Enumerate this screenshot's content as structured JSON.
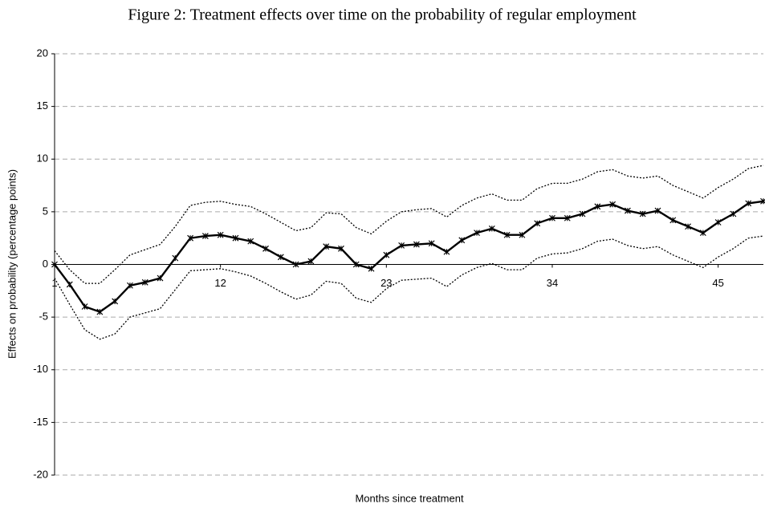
{
  "chart_data": {
    "type": "line",
    "title": "Figure 2: Treatment effects over time on the probability of regular employment",
    "xlabel": "Months since treatment",
    "ylabel": "Effects on probability (percentage points)",
    "x": [
      1,
      2,
      3,
      4,
      5,
      6,
      7,
      8,
      9,
      10,
      11,
      12,
      13,
      14,
      15,
      16,
      17,
      18,
      19,
      20,
      21,
      22,
      23,
      24,
      25,
      26,
      27,
      28,
      29,
      30,
      31,
      32,
      33,
      34,
      35,
      36,
      37,
      38,
      39,
      40,
      41,
      42,
      43,
      44,
      45,
      46,
      47,
      48
    ],
    "xlim": [
      1,
      48
    ],
    "xticks": [
      1,
      12,
      23,
      34,
      45
    ],
    "ylim": [
      -20,
      20
    ],
    "yticks": [
      -20,
      -15,
      -10,
      -5,
      0,
      5,
      10,
      15,
      20
    ],
    "grid": true,
    "series": [
      {
        "color": "#000000",
        "dash": "solid",
        "marker": "star",
        "values": [
          0,
          -1.9,
          -4.0,
          -4.5,
          -3.5,
          -2.0,
          -1.7,
          -1.3,
          0.6,
          2.5,
          2.7,
          2.8,
          2.5,
          2.2,
          1.5,
          0.7,
          0.0,
          0.3,
          1.7,
          1.5,
          0.0,
          -0.4,
          0.9,
          1.8,
          1.9,
          2.0,
          1.2,
          2.3,
          3.0,
          3.4,
          2.8,
          2.8,
          3.9,
          4.4,
          4.4,
          4.8,
          5.5,
          5.7,
          5.1,
          4.8,
          5.1,
          4.2,
          3.6,
          3.0,
          4.0,
          4.8,
          5.8,
          6.0
        ]
      },
      {
        "color": "#000000",
        "dash": "dotted",
        "values": [
          1.3,
          -0.5,
          -1.8,
          -1.8,
          -0.5,
          0.9,
          1.4,
          1.9,
          3.6,
          5.6,
          5.9,
          6.0,
          5.7,
          5.5,
          4.8,
          4.0,
          3.2,
          3.5,
          4.9,
          4.8,
          3.5,
          2.9,
          4.1,
          5.0,
          5.2,
          5.3,
          4.5,
          5.6,
          6.3,
          6.7,
          6.1,
          6.1,
          7.2,
          7.7,
          7.7,
          8.1,
          8.8,
          9.0,
          8.4,
          8.2,
          8.4,
          7.5,
          6.9,
          6.3,
          7.3,
          8.1,
          9.1,
          9.4
        ]
      },
      {
        "color": "#000000",
        "dash": "dotted",
        "values": [
          -1.3,
          -3.8,
          -6.2,
          -7.1,
          -6.6,
          -5.0,
          -4.6,
          -4.2,
          -2.4,
          -0.6,
          -0.5,
          -0.4,
          -0.7,
          -1.1,
          -1.8,
          -2.6,
          -3.3,
          -2.9,
          -1.6,
          -1.8,
          -3.2,
          -3.6,
          -2.3,
          -1.5,
          -1.4,
          -1.3,
          -2.1,
          -1.0,
          -0.3,
          0.1,
          -0.5,
          -0.5,
          0.6,
          1.0,
          1.1,
          1.5,
          2.2,
          2.4,
          1.8,
          1.5,
          1.7,
          0.9,
          0.3,
          -0.3,
          0.7,
          1.5,
          2.5,
          2.7
        ]
      }
    ]
  }
}
